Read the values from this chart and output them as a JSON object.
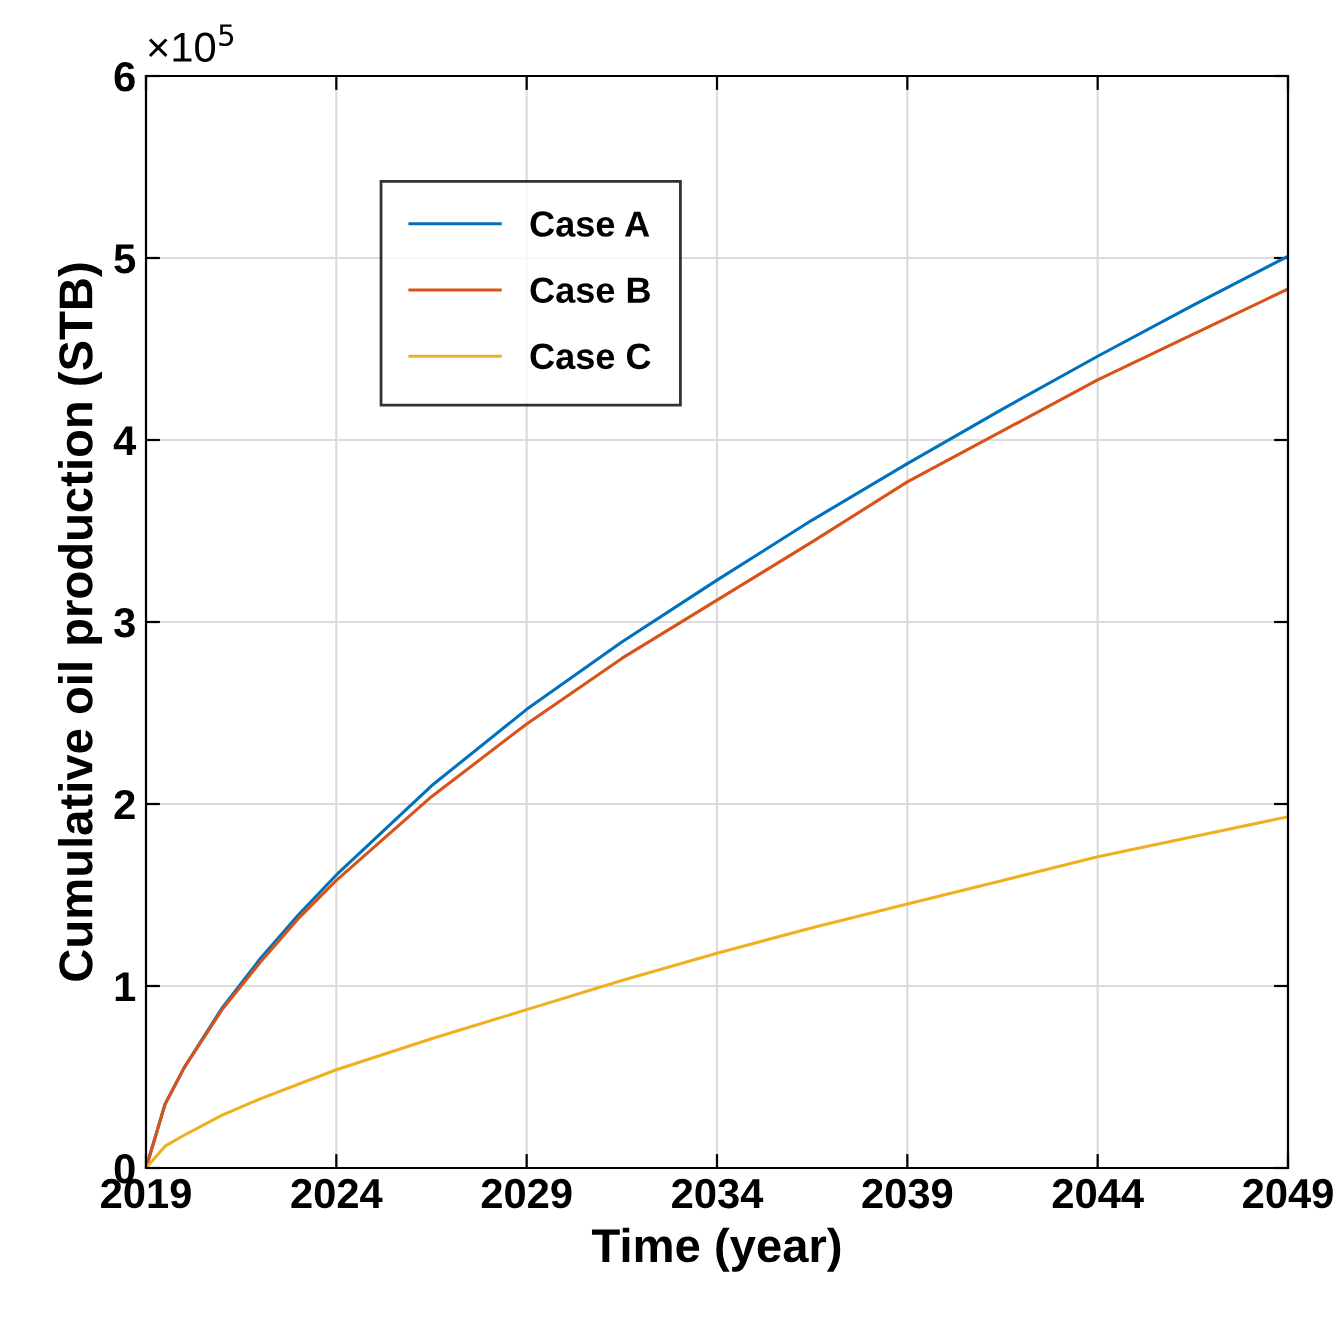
{
  "chart_data": {
    "type": "line",
    "xlabel": "Time (year)",
    "ylabel": "Cumulative oil production (STB)",
    "annotations": [
      "×10$^{5}$"
    ],
    "series": [
      {
        "name": "Case A",
        "color": "#0072bd",
        "x": [
          2019,
          2019.5,
          2020,
          2021,
          2022,
          2023,
          2024,
          2026.5,
          2029,
          2031.5,
          2034,
          2036.5,
          2039,
          2041.5,
          2044,
          2046.5,
          2049
        ],
        "values": [
          0,
          0.35,
          0.55,
          0.88,
          1.15,
          1.39,
          1.61,
          2.1,
          2.52,
          2.89,
          3.23,
          3.56,
          3.87,
          4.17,
          4.46,
          4.74,
          5.01
        ]
      },
      {
        "name": "Case B",
        "color": "#d95319",
        "x": [
          2019,
          2019.5,
          2020,
          2021,
          2022,
          2023,
          2024,
          2026.5,
          2029,
          2031.5,
          2034,
          2036.5,
          2039,
          2041.5,
          2044,
          2046.5,
          2049
        ],
        "values": [
          0,
          0.35,
          0.55,
          0.87,
          1.13,
          1.37,
          1.58,
          2.04,
          2.44,
          2.8,
          3.12,
          3.44,
          3.77,
          4.05,
          4.33,
          4.58,
          4.83
        ]
      },
      {
        "name": "Case C",
        "color": "#edb120",
        "x": [
          2019,
          2019.5,
          2020,
          2021,
          2022,
          2023,
          2024,
          2026.5,
          2029,
          2031.5,
          2034,
          2036.5,
          2039,
          2041.5,
          2044,
          2046.5,
          2049
        ],
        "values": [
          0,
          0.12,
          0.18,
          0.29,
          0.38,
          0.46,
          0.54,
          0.71,
          0.87,
          1.03,
          1.18,
          1.32,
          1.45,
          1.58,
          1.71,
          1.82,
          1.93
        ]
      }
    ],
    "xlim": [
      2019,
      2049
    ],
    "xticks": [
      2019,
      2024,
      2029,
      2034,
      2039,
      2044,
      2049
    ],
    "ylim": [
      0,
      6
    ],
    "yticks": [
      0,
      1,
      2,
      3,
      4,
      5,
      6
    ],
    "grid": true,
    "legend": "top left",
    "marker": "none",
    "line_style": "solid"
  }
}
